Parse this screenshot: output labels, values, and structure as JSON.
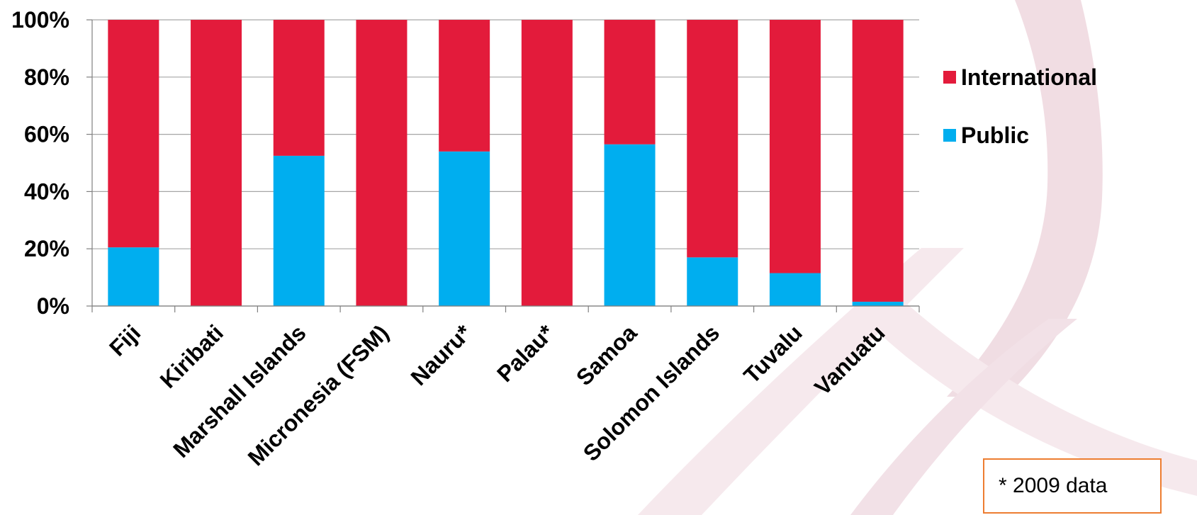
{
  "chart_data": {
    "type": "bar",
    "stacked": true,
    "percent_stacked": true,
    "categories": [
      "Fiji",
      "Kiribati",
      "Marshall Islands",
      "Micronesia (FSM)",
      "Nauru*",
      "Palau*",
      "Samoa",
      "Solomon Islands",
      "Tuvalu",
      "Vanuatu"
    ],
    "series": [
      {
        "name": "Public",
        "color": "#00aeef",
        "values": [
          20.5,
          0,
          52.5,
          0,
          54,
          0,
          56.5,
          17,
          11.5,
          1.5
        ]
      },
      {
        "name": "International",
        "color": "#e31b3b",
        "values": [
          79.5,
          100,
          47.5,
          100,
          46,
          100,
          43.5,
          83,
          88.5,
          98.5
        ]
      }
    ],
    "y_tick_labels": [
      "0%",
      "20%",
      "40%",
      "60%",
      "80%",
      "100%"
    ],
    "ylim": [
      0,
      100
    ],
    "grid": true,
    "legend_position": "right",
    "legend_order": [
      "International",
      "Public"
    ]
  },
  "note": {
    "text": "* 2009 data",
    "border_color": "#ed7d31"
  },
  "colors": {
    "gridline": "#a6a6a6",
    "axis": "#808080",
    "watermark": "#e8c6cf"
  }
}
